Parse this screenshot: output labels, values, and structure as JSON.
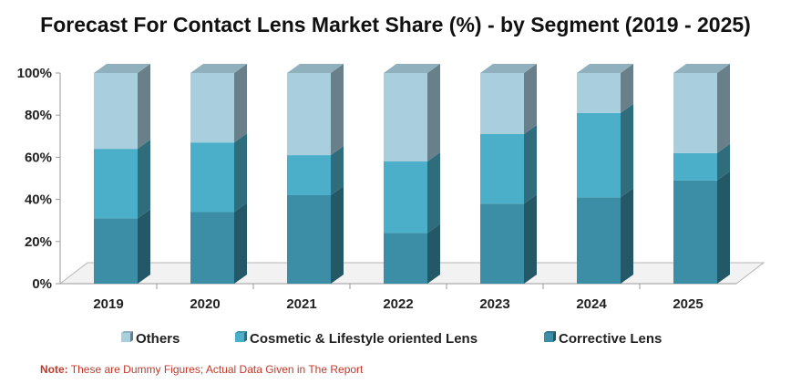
{
  "chart_data": {
    "type": "bar",
    "stacked": true,
    "title": "Forecast For Contact Lens Market Share (%)  -  by Segment (2019  - 2025)",
    "categories": [
      "2019",
      "2020",
      "2021",
      "2022",
      "2023",
      "2024",
      "2025"
    ],
    "series": [
      {
        "name": "Corrective Lens",
        "values": [
          31,
          34,
          42,
          24,
          38,
          41,
          49
        ],
        "color": "#3b8ea5"
      },
      {
        "name": "Cosmetic & Lifestyle oriented Lens",
        "values": [
          33,
          33,
          19,
          34,
          33,
          40,
          13
        ],
        "color": "#4bafc9"
      },
      {
        "name": "Others",
        "values": [
          36,
          33,
          39,
          42,
          29,
          19,
          38
        ],
        "color": "#a9cfdf"
      }
    ],
    "ylim": [
      0,
      100
    ],
    "yticks": [
      "0%",
      "20%",
      "40%",
      "60%",
      "80%",
      "100%"
    ],
    "legend_position": "bottom",
    "legend_order": [
      "Others",
      "Cosmetic & Lifestyle oriented Lens",
      "Corrective Lens"
    ]
  },
  "note": {
    "label": "Note:",
    "text": " These are Dummy Figures; Actual Data Given in The Report"
  }
}
